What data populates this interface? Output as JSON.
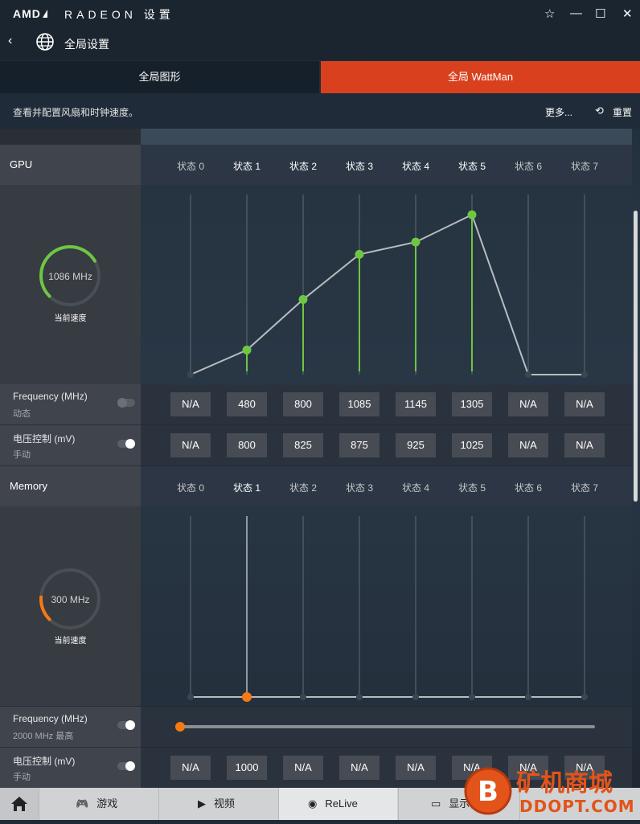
{
  "app": {
    "logo": "AMD",
    "brand": "RADEON 设置"
  },
  "window_controls": {
    "favorite": "☆",
    "minimize": "—",
    "maximize": "☐",
    "close": "✕"
  },
  "header": {
    "back": "‹",
    "title": "全局设置"
  },
  "tabs": [
    {
      "label": "全局图形"
    },
    {
      "label": "全局 WattMan"
    }
  ],
  "description": {
    "text": "查看并配置风扇和时钟速度。",
    "more": "更多...",
    "reset": "重置"
  },
  "states": [
    "状态 0",
    "状态 1",
    "状态 2",
    "状态 3",
    "状态 4",
    "状态 5",
    "状态 6",
    "状态 7"
  ],
  "gpu": {
    "label": "GPU",
    "gauge_value": "1086 MHz",
    "gauge_label": "当前速度",
    "gauge_fraction": 0.72,
    "curve_levels": [
      0,
      0.18,
      0.55,
      0.88,
      0.97,
      1.17,
      0,
      0
    ],
    "frequency": {
      "title": "Frequency (MHz)",
      "sub": "动态",
      "toggle": "off",
      "values": [
        "N/A",
        "480",
        "800",
        "1085",
        "1145",
        "1305",
        "N/A",
        "N/A"
      ]
    },
    "voltage": {
      "title": "电压控制 (mV)",
      "sub": "手动",
      "toggle": "on",
      "values": [
        "N/A",
        "800",
        "825",
        "875",
        "925",
        "1025",
        "N/A",
        "N/A"
      ]
    }
  },
  "memory": {
    "label": "Memory",
    "gauge_value": "300 MHz",
    "gauge_label": "当前速度",
    "gauge_fraction": 0.18,
    "frequency": {
      "title": "Frequency (MHz)",
      "sub": "2000 MHz 最高",
      "toggle": "on",
      "slider_fraction": 0.0
    },
    "voltage": {
      "title": "电压控制 (mV)",
      "sub": "手动",
      "toggle": "on",
      "values": [
        "N/A",
        "1000",
        "N/A",
        "N/A",
        "N/A",
        "N/A",
        "N/A",
        "N/A"
      ]
    }
  },
  "bottom_nav": [
    {
      "label": "游戏"
    },
    {
      "label": "视频"
    },
    {
      "label": "ReLive"
    },
    {
      "label": "显示器"
    }
  ],
  "watermark": {
    "text": "矿机商城",
    "sub": "DDOPT.COM"
  },
  "colors": {
    "accent": "#d9411e",
    "green": "#6ec642",
    "orange": "#f57a12"
  }
}
